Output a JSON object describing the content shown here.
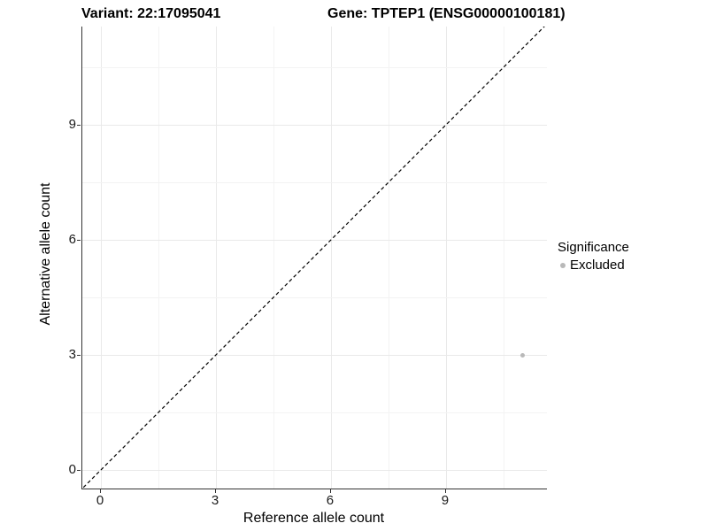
{
  "titles": {
    "variant": "Variant: 22:17095041",
    "gene": "Gene: TPTEP1 (ENSG00000100181)"
  },
  "legend": {
    "title": "Significance",
    "items": [
      {
        "label": "Excluded",
        "color": "#b9b9b9"
      }
    ]
  },
  "chart_data": {
    "type": "scatter",
    "title_left": "Variant: 22:17095041",
    "title_right": "Gene: TPTEP1 (ENSG00000100181)",
    "xlabel": "Reference allele count",
    "ylabel": "Alternative allele count",
    "x_ticks": [
      0,
      3,
      6,
      9
    ],
    "y_ticks": [
      0,
      3,
      6,
      9
    ],
    "xlim": [
      -0.5,
      11.6
    ],
    "ylim": [
      -0.5,
      11.6
    ],
    "grid": true,
    "legend_position": "right",
    "series": [
      {
        "name": "Excluded",
        "color": "#b9b9b9",
        "points": [
          {
            "x": 11,
            "y": 3
          }
        ]
      }
    ],
    "reference_line": {
      "kind": "identity y=x",
      "style": "dashed",
      "color": "#000000"
    }
  }
}
